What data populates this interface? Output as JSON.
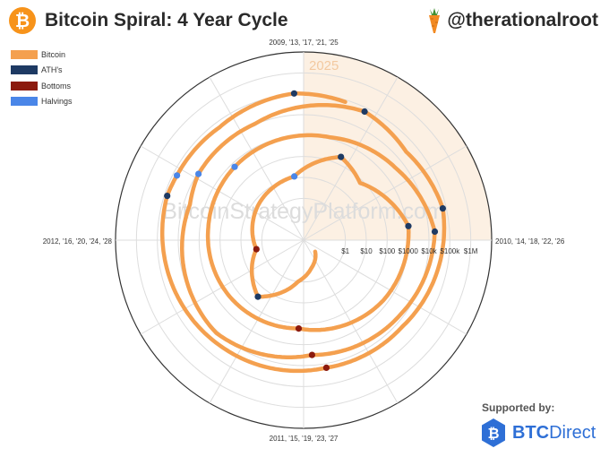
{
  "header": {
    "title": "Bitcoin Spiral: 4 Year Cycle",
    "logo_glyph": "₿",
    "handle": "@therationalroot",
    "btc_color": "#f7931a"
  },
  "footer": {
    "supported_by": "Supported by:",
    "brand_prefix": "BTC",
    "brand_suffix": "Direct",
    "brand_color": "#2e6fd6"
  },
  "chart_data": {
    "type": "polar-spiral",
    "title": "Bitcoin Spiral: 4 Year Cycle",
    "watermark": "BitcoinStrategyPlatform.com",
    "highlight_label": "2025",
    "angular_axis": {
      "direction": "clockwise",
      "labels": [
        {
          "angle_deg": 0,
          "text": "2009, '13, '17, '21, '25"
        },
        {
          "angle_deg": 90,
          "text": "2010, '14, '18, '22, '26"
        },
        {
          "angle_deg": 180,
          "text": "2011, '15, '19, '23, '27"
        },
        {
          "angle_deg": 270,
          "text": "2012, '16, '20, '24, '28"
        }
      ]
    },
    "radial_axis": {
      "scale": "log",
      "range": [
        0.01,
        10000000
      ],
      "ticks": [
        {
          "value": 1,
          "label": "$1"
        },
        {
          "value": 10,
          "label": "$10"
        },
        {
          "value": 100,
          "label": "$100"
        },
        {
          "value": 1000,
          "label": "$1000"
        },
        {
          "value": 10000,
          "label": "$10k"
        },
        {
          "value": 100000,
          "label": "$100k"
        },
        {
          "value": 1000000,
          "label": "$1M"
        }
      ]
    },
    "legend": [
      {
        "name": "Bitcoin",
        "color": "#f4a04f"
      },
      {
        "name": "ATH's",
        "color": "#1e3a63"
      },
      {
        "name": "Bottoms",
        "color": "#8b1a0e"
      },
      {
        "name": "Halvings",
        "color": "#4a86e8"
      }
    ],
    "price_series": [
      {
        "date": "2010-07-01",
        "price": 0.06
      },
      {
        "date": "2010-11-01",
        "price": 0.25
      },
      {
        "date": "2011-02-01",
        "price": 1
      },
      {
        "date": "2011-06-08",
        "price": 30
      },
      {
        "date": "2011-11-18",
        "price": 2
      },
      {
        "date": "2012-06-01",
        "price": 5.5
      },
      {
        "date": "2012-11-28",
        "price": 12
      },
      {
        "date": "2013-04-09",
        "price": 230
      },
      {
        "date": "2013-07-01",
        "price": 70
      },
      {
        "date": "2013-12-01",
        "price": 1150
      },
      {
        "date": "2014-06-01",
        "price": 600
      },
      {
        "date": "2015-01-14",
        "price": 170
      },
      {
        "date": "2015-08-01",
        "price": 280
      },
      {
        "date": "2016-02-01",
        "price": 400
      },
      {
        "date": "2016-07-09",
        "price": 650
      },
      {
        "date": "2017-03-01",
        "price": 1200
      },
      {
        "date": "2017-08-01",
        "price": 4000
      },
      {
        "date": "2017-12-17",
        "price": 19500
      },
      {
        "date": "2018-06-01",
        "price": 7000
      },
      {
        "date": "2018-12-15",
        "price": 3200
      },
      {
        "date": "2019-06-26",
        "price": 12500
      },
      {
        "date": "2020-03-12",
        "price": 5000
      },
      {
        "date": "2020-05-11",
        "price": 8800
      },
      {
        "date": "2020-10-01",
        "price": 10700
      },
      {
        "date": "2021-04-14",
        "price": 64000
      },
      {
        "date": "2021-07-20",
        "price": 30000
      },
      {
        "date": "2021-11-10",
        "price": 68000
      },
      {
        "date": "2022-06-18",
        "price": 19000
      },
      {
        "date": "2022-11-21",
        "price": 15800
      },
      {
        "date": "2023-06-01",
        "price": 27000
      },
      {
        "date": "2024-03-14",
        "price": 73000
      },
      {
        "date": "2024-04-20",
        "price": 64000
      },
      {
        "date": "2024-08-05",
        "price": 54000
      },
      {
        "date": "2024-12-17",
        "price": 107000
      },
      {
        "date": "2025-03-10",
        "price": 80000
      }
    ],
    "ath_points": [
      {
        "date": "2011-06-08",
        "price": 30
      },
      {
        "date": "2013-04-09",
        "price": 230
      },
      {
        "date": "2013-12-01",
        "price": 1150
      },
      {
        "date": "2017-12-17",
        "price": 19500
      },
      {
        "date": "2021-04-14",
        "price": 64000
      },
      {
        "date": "2021-11-10",
        "price": 68000
      },
      {
        "date": "2024-03-14",
        "price": 73000
      },
      {
        "date": "2024-12-17",
        "price": 107000
      }
    ],
    "bottom_points": [
      {
        "date": "2011-11-18",
        "price": 2
      },
      {
        "date": "2015-01-14",
        "price": 170
      },
      {
        "date": "2018-12-15",
        "price": 3200
      },
      {
        "date": "2022-11-21",
        "price": 15800
      }
    ],
    "halving_points": [
      {
        "date": "2012-11-28",
        "price": 12
      },
      {
        "date": "2016-07-09",
        "price": 650
      },
      {
        "date": "2020-05-11",
        "price": 8800
      },
      {
        "date": "2024-04-20",
        "price": 64000
      }
    ]
  }
}
